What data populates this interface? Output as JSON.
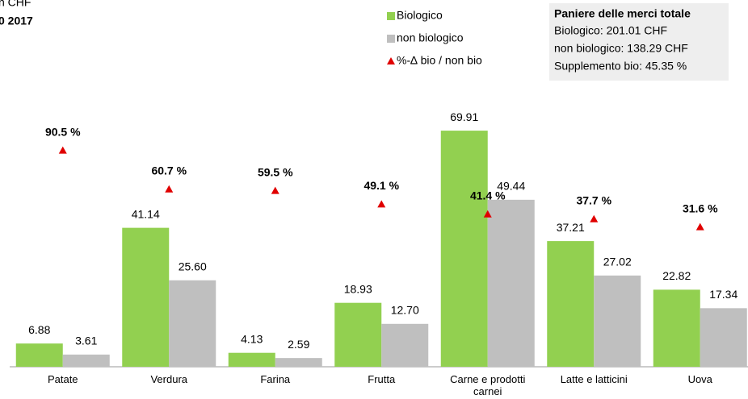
{
  "chart_data": {
    "type": "bar",
    "title": "n CHF",
    "subtitle": "0 2017",
    "categories": [
      "Patate",
      "Verdura",
      "Farina",
      "Frutta",
      "Carne e prodotti carnei",
      "Latte e latticini",
      "Uova"
    ],
    "series": [
      {
        "name": "Biologico",
        "color": "#92d050",
        "values": [
          6.88,
          41.14,
          4.13,
          18.93,
          69.91,
          37.21,
          22.82
        ]
      },
      {
        "name": "non biologico",
        "color": "#bfbfbf",
        "values": [
          3.61,
          25.6,
          2.59,
          12.7,
          49.44,
          27.02,
          17.34
        ],
        "value_labels": [
          "3.61",
          "25.60",
          "2.59",
          "12.70",
          "49.44",
          "27.02",
          "17.34"
        ]
      },
      {
        "name": "%-∆ bio / non bio",
        "color": "#e00000",
        "type": "scatter",
        "axis": "y2",
        "values": [
          90.5,
          60.7,
          59.5,
          49.1,
          41.4,
          37.7,
          31.6
        ],
        "value_labels": [
          "90.5 %",
          "60.7 %",
          "59.5 %",
          "49.1 %",
          "41.4 %",
          "37.7 %",
          "31.6 %"
        ]
      }
    ],
    "ylim": [
      0,
      100
    ],
    "y2lim": [
      -76,
      184
    ],
    "annotations": [
      "Paniere delle merci totale",
      "Biologico: 201.01 CHF",
      "non biologico: 138.29 CHF",
      "Supplemento bio: 45.35 %"
    ]
  }
}
